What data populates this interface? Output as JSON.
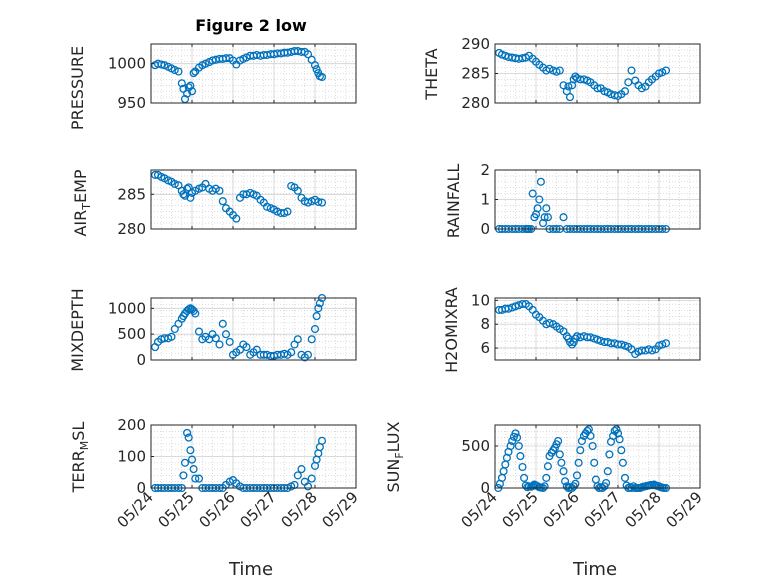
{
  "figure": {
    "title": "Figure 2 low",
    "xlabel_left": "Time",
    "xlabel_right": "Time"
  },
  "colors": {
    "marker": "#0072bd",
    "axis": "#262626",
    "grid": "#d0d0d0",
    "minorgrid": "#c8c8c8"
  },
  "x_ticks": [
    "05/24",
    "05/25",
    "05/26",
    "05/27",
    "05/28",
    "05/29"
  ],
  "panel_labels": {
    "pressure": "PRESSURE",
    "theta": "THETA",
    "airtemp_a": "AIR",
    "airtemp_sub": "T",
    "airtemp_b": "EMP",
    "rainfall": "RAINFALL",
    "mixdepth": "MIXDEPTH",
    "h2omixra": "H2OMIXRA",
    "terr_a": "TERR",
    "terr_sub": "M",
    "terr_b": "SL",
    "sun_a": "SUN",
    "sun_sub": "F",
    "sun_b": "LUX"
  },
  "chart_data": [
    {
      "id": "pressure",
      "type": "scatter",
      "title": "Figure 2 low",
      "ylabel": "PRESSURE",
      "xlim": [
        0,
        5
      ],
      "ylim": [
        950,
        1025
      ],
      "yticks": [
        "1000",
        "950"
      ],
      "ytick_values": [
        1000,
        950
      ],
      "x": [
        0.1,
        0.17,
        0.25,
        0.33,
        0.42,
        0.5,
        0.58,
        0.67,
        0.75,
        0.79,
        0.83,
        0.88,
        0.92,
        0.96,
        1.0,
        1.04,
        1.08,
        1.17,
        1.25,
        1.33,
        1.42,
        1.5,
        1.58,
        1.67,
        1.75,
        1.83,
        1.92,
        2.0,
        2.08,
        2.17,
        2.25,
        2.33,
        2.42,
        2.5,
        2.58,
        2.67,
        2.75,
        2.83,
        2.92,
        3.0,
        3.08,
        3.17,
        3.25,
        3.33,
        3.42,
        3.5,
        3.58,
        3.67,
        3.75,
        3.83,
        3.92,
        4.0,
        4.04,
        4.08,
        4.12,
        4.17
      ],
      "y": [
        998,
        1000,
        999,
        998,
        996,
        994,
        992,
        990,
        975,
        968,
        955,
        962,
        970,
        972,
        965,
        988,
        990,
        995,
        998,
        1000,
        1002,
        1004,
        1005,
        1006,
        1006,
        1007,
        1007,
        1004,
        999,
        1004,
        1006,
        1008,
        1010,
        1010,
        1011,
        1010,
        1011,
        1011,
        1012,
        1012,
        1013,
        1013,
        1014,
        1014,
        1015,
        1016,
        1016,
        1015,
        1015,
        1012,
        1005,
        998,
        993,
        988,
        984,
        983
      ]
    },
    {
      "id": "theta",
      "type": "scatter",
      "ylabel": "THETA",
      "xlim": [
        0,
        5
      ],
      "ylim": [
        280,
        290
      ],
      "yticks": [
        "290",
        "285",
        "280"
      ],
      "ytick_values": [
        290,
        285,
        280
      ],
      "x": [
        0.1,
        0.17,
        0.25,
        0.33,
        0.42,
        0.5,
        0.58,
        0.67,
        0.75,
        0.83,
        0.92,
        1.0,
        1.08,
        1.17,
        1.25,
        1.33,
        1.42,
        1.5,
        1.58,
        1.67,
        1.75,
        1.79,
        1.83,
        1.88,
        1.92,
        1.96,
        2.0,
        2.08,
        2.17,
        2.25,
        2.33,
        2.42,
        2.5,
        2.58,
        2.67,
        2.75,
        2.83,
        2.92,
        3.0,
        3.08,
        3.17,
        3.25,
        3.33,
        3.42,
        3.5,
        3.58,
        3.67,
        3.75,
        3.83,
        3.92,
        4.0,
        4.08,
        4.17
      ],
      "y": [
        288.5,
        288.2,
        288,
        287.8,
        287.7,
        287.6,
        287.5,
        287.6,
        287.7,
        288,
        287.5,
        287,
        286.5,
        286,
        285.5,
        285.8,
        285.5,
        285.3,
        285.5,
        283,
        282,
        282.8,
        281,
        283,
        284,
        284.5,
        284.2,
        284,
        284,
        283.8,
        283.5,
        283,
        282.5,
        282.5,
        282,
        281.8,
        281.5,
        281.3,
        281.2,
        281.5,
        282,
        283.5,
        285.5,
        283.8,
        283,
        282.5,
        282.8,
        283.5,
        284,
        284.5,
        285,
        285.2,
        285.5
      ]
    },
    {
      "id": "airtemp",
      "type": "scatter",
      "ylabel": "AIR_TEMP",
      "xlim": [
        0,
        5
      ],
      "ylim": [
        280,
        288.5
      ],
      "yticks": [
        "285",
        "280"
      ],
      "ytick_values": [
        285,
        280
      ],
      "x": [
        0.1,
        0.17,
        0.25,
        0.33,
        0.42,
        0.5,
        0.58,
        0.67,
        0.75,
        0.79,
        0.83,
        0.88,
        0.92,
        0.96,
        1.0,
        1.08,
        1.17,
        1.25,
        1.33,
        1.42,
        1.5,
        1.58,
        1.67,
        1.75,
        1.83,
        1.92,
        2.0,
        2.08,
        2.17,
        2.25,
        2.33,
        2.42,
        2.5,
        2.58,
        2.67,
        2.75,
        2.83,
        2.92,
        3.0,
        3.08,
        3.17,
        3.25,
        3.33,
        3.42,
        3.5,
        3.58,
        3.67,
        3.75,
        3.83,
        3.92,
        4.0,
        4.08,
        4.17
      ],
      "y": [
        287.8,
        287.8,
        287.5,
        287.3,
        287,
        286.8,
        286.5,
        286.3,
        285.5,
        285,
        284.8,
        285.8,
        286,
        284.5,
        285.2,
        285.5,
        285.8,
        286,
        286.5,
        285.8,
        285.5,
        285.8,
        285.5,
        284,
        283,
        282.5,
        282,
        281.5,
        284.5,
        285,
        285,
        285.2,
        285,
        284.8,
        284.2,
        283.8,
        283.2,
        283,
        282.8,
        282.5,
        282.3,
        282.3,
        282.5,
        286.2,
        286,
        285.5,
        284.5,
        284,
        283.8,
        284,
        284.2,
        283.9,
        283.8
      ]
    },
    {
      "id": "rainfall",
      "type": "scatter",
      "ylabel": "RAINFALL",
      "xlim": [
        0,
        5
      ],
      "ylim": [
        0,
        2
      ],
      "yticks": [
        "2",
        "1",
        "0"
      ],
      "ytick_values": [
        2,
        1,
        0
      ],
      "x": [
        0.1,
        0.17,
        0.25,
        0.33,
        0.42,
        0.5,
        0.58,
        0.67,
        0.75,
        0.79,
        0.83,
        0.88,
        0.92,
        0.96,
        1.0,
        1.04,
        1.08,
        1.12,
        1.17,
        1.21,
        1.25,
        1.29,
        1.33,
        1.42,
        1.5,
        1.58,
        1.67,
        1.75,
        1.83,
        1.92,
        2.0,
        2.08,
        2.17,
        2.25,
        2.33,
        2.42,
        2.5,
        2.58,
        2.67,
        2.75,
        2.83,
        2.92,
        3.0,
        3.08,
        3.17,
        3.25,
        3.33,
        3.42,
        3.5,
        3.58,
        3.67,
        3.75,
        3.83,
        3.92,
        4.0,
        4.08,
        4.17
      ],
      "y": [
        0,
        0,
        0,
        0,
        0,
        0,
        0,
        0,
        0,
        0,
        0,
        0,
        1.2,
        0.4,
        0.5,
        0.7,
        1.0,
        1.6,
        0.2,
        0.4,
        0.7,
        0.4,
        0,
        0,
        0,
        0,
        0.4,
        0,
        0,
        0,
        0,
        0,
        0,
        0,
        0,
        0,
        0,
        0,
        0,
        0,
        0,
        0,
        0,
        0,
        0,
        0,
        0,
        0,
        0,
        0,
        0,
        0,
        0,
        0,
        0,
        0,
        0
      ]
    },
    {
      "id": "mixdepth",
      "type": "scatter",
      "ylabel": "MIXDEPTH",
      "xlim": [
        0,
        5
      ],
      "ylim": [
        0,
        1200
      ],
      "yticks": [
        "1000",
        "500",
        "0"
      ],
      "ytick_values": [
        1000,
        500,
        0
      ],
      "x": [
        0.1,
        0.17,
        0.25,
        0.33,
        0.42,
        0.5,
        0.58,
        0.67,
        0.75,
        0.79,
        0.83,
        0.88,
        0.92,
        0.96,
        1.0,
        1.04,
        1.08,
        1.17,
        1.25,
        1.33,
        1.42,
        1.5,
        1.58,
        1.67,
        1.75,
        1.83,
        1.92,
        2.0,
        2.08,
        2.17,
        2.25,
        2.33,
        2.42,
        2.5,
        2.58,
        2.67,
        2.75,
        2.83,
        2.92,
        3.0,
        3.08,
        3.17,
        3.25,
        3.33,
        3.42,
        3.5,
        3.58,
        3.67,
        3.75,
        3.83,
        3.92,
        4.0,
        4.04,
        4.08,
        4.12,
        4.17
      ],
      "y": [
        250,
        350,
        400,
        420,
        420,
        450,
        600,
        700,
        800,
        850,
        900,
        950,
        980,
        1000,
        980,
        950,
        900,
        550,
        400,
        450,
        400,
        500,
        420,
        300,
        700,
        500,
        350,
        100,
        150,
        200,
        300,
        250,
        100,
        150,
        200,
        100,
        100,
        100,
        80,
        80,
        100,
        100,
        120,
        100,
        150,
        300,
        400,
        100,
        50,
        100,
        400,
        600,
        850,
        1000,
        1100,
        1200
      ]
    },
    {
      "id": "h2omixra",
      "type": "scatter",
      "ylabel": "H2OMIXRA",
      "xlim": [
        0,
        5
      ],
      "ylim": [
        5,
        10.2
      ],
      "yticks": [
        "10",
        "8",
        "6"
      ],
      "ytick_values": [
        10,
        8,
        6
      ],
      "x": [
        0.1,
        0.17,
        0.25,
        0.33,
        0.42,
        0.5,
        0.58,
        0.67,
        0.75,
        0.83,
        0.92,
        1.0,
        1.08,
        1.17,
        1.25,
        1.33,
        1.42,
        1.5,
        1.58,
        1.67,
        1.75,
        1.79,
        1.83,
        1.88,
        1.92,
        1.96,
        2.0,
        2.08,
        2.17,
        2.25,
        2.33,
        2.42,
        2.5,
        2.58,
        2.67,
        2.75,
        2.83,
        2.92,
        3.0,
        3.08,
        3.17,
        3.25,
        3.33,
        3.42,
        3.5,
        3.58,
        3.67,
        3.75,
        3.83,
        3.92,
        4.0,
        4.08,
        4.17
      ],
      "y": [
        9.2,
        9.2,
        9.3,
        9.3,
        9.4,
        9.5,
        9.6,
        9.7,
        9.7,
        9.5,
        9.2,
        8.8,
        8.6,
        8.3,
        8.0,
        8.1,
        8.0,
        7.8,
        7.6,
        7.4,
        7.0,
        6.8,
        6.5,
        6.3,
        6.5,
        6.8,
        7.0,
        6.9,
        7.0,
        6.9,
        6.9,
        6.8,
        6.7,
        6.6,
        6.5,
        6.5,
        6.4,
        6.4,
        6.3,
        6.3,
        6.2,
        6.1,
        5.9,
        5.5,
        5.7,
        5.8,
        5.8,
        5.9,
        5.8,
        5.9,
        6.2,
        6.3,
        6.4
      ]
    },
    {
      "id": "terrmsl",
      "type": "scatter",
      "ylabel": "TERR_MSL",
      "xlim": [
        0,
        5
      ],
      "ylim": [
        0,
        200
      ],
      "yticks": [
        "200",
        "100",
        "0"
      ],
      "ytick_values": [
        200,
        100,
        0
      ],
      "x": [
        0.1,
        0.17,
        0.25,
        0.33,
        0.42,
        0.5,
        0.58,
        0.67,
        0.75,
        0.79,
        0.83,
        0.88,
        0.92,
        0.96,
        1.0,
        1.04,
        1.08,
        1.17,
        1.25,
        1.33,
        1.42,
        1.5,
        1.58,
        1.67,
        1.75,
        1.83,
        1.92,
        2.0,
        2.08,
        2.17,
        2.25,
        2.33,
        2.42,
        2.5,
        2.58,
        2.67,
        2.75,
        2.83,
        2.92,
        3.0,
        3.08,
        3.17,
        3.25,
        3.33,
        3.42,
        3.5,
        3.58,
        3.67,
        3.75,
        3.83,
        3.92,
        4.0,
        4.04,
        4.08,
        4.12,
        4.17
      ],
      "y": [
        0,
        0,
        0,
        0,
        0,
        0,
        0,
        0,
        0,
        40,
        80,
        175,
        160,
        120,
        90,
        60,
        30,
        30,
        0,
        0,
        0,
        0,
        0,
        0,
        0,
        10,
        20,
        25,
        15,
        5,
        0,
        0,
        0,
        0,
        0,
        0,
        0,
        0,
        0,
        0,
        0,
        0,
        0,
        0,
        5,
        10,
        40,
        60,
        20,
        5,
        30,
        70,
        90,
        110,
        130,
        150
      ]
    },
    {
      "id": "sunflux",
      "type": "scatter",
      "ylabel": "SUN_FLUX",
      "xlim": [
        0,
        5
      ],
      "ylim": [
        0,
        750
      ],
      "yticks": [
        "500",
        "0"
      ],
      "ytick_values": [
        500,
        0
      ],
      "x": [
        0.08,
        0.12,
        0.17,
        0.21,
        0.25,
        0.29,
        0.33,
        0.38,
        0.42,
        0.46,
        0.5,
        0.54,
        0.58,
        0.62,
        0.67,
        0.71,
        0.75,
        0.79,
        0.83,
        0.88,
        0.92,
        0.96,
        1.0,
        1.04,
        1.08,
        1.12,
        1.17,
        1.21,
        1.25,
        1.29,
        1.33,
        1.38,
        1.42,
        1.46,
        1.5,
        1.54,
        1.58,
        1.62,
        1.67,
        1.71,
        1.75,
        1.79,
        1.83,
        1.88,
        1.92,
        1.96,
        2.0,
        2.04,
        2.08,
        2.12,
        2.17,
        2.21,
        2.25,
        2.29,
        2.33,
        2.38,
        2.42,
        2.46,
        2.5,
        2.54,
        2.58,
        2.62,
        2.67,
        2.71,
        2.75,
        2.79,
        2.83,
        2.88,
        2.92,
        2.96,
        3.0,
        3.04,
        3.08,
        3.12,
        3.17,
        3.21,
        3.25,
        3.29,
        3.33,
        3.38,
        3.42,
        3.46,
        3.5,
        3.54,
        3.58,
        3.62,
        3.67,
        3.71,
        3.75,
        3.79,
        3.83,
        3.88,
        3.92,
        3.96,
        4.0,
        4.04,
        4.08,
        4.12,
        4.17
      ],
      "y": [
        0,
        50,
        120,
        200,
        280,
        360,
        430,
        500,
        560,
        610,
        650,
        600,
        500,
        380,
        250,
        120,
        30,
        10,
        20,
        15,
        25,
        40,
        30,
        20,
        10,
        5,
        0,
        20,
        120,
        260,
        380,
        420,
        450,
        480,
        520,
        560,
        400,
        300,
        200,
        80,
        20,
        0,
        10,
        0,
        20,
        50,
        150,
        300,
        450,
        560,
        620,
        650,
        680,
        700,
        620,
        500,
        300,
        100,
        20,
        0,
        10,
        0,
        20,
        60,
        200,
        400,
        550,
        620,
        680,
        700,
        650,
        580,
        450,
        300,
        120,
        30,
        0,
        10,
        0,
        20,
        0,
        0,
        0,
        0,
        10,
        15,
        20,
        25,
        30,
        35,
        35,
        40,
        30,
        25,
        20,
        10,
        5,
        0,
        0
      ]
    }
  ]
}
